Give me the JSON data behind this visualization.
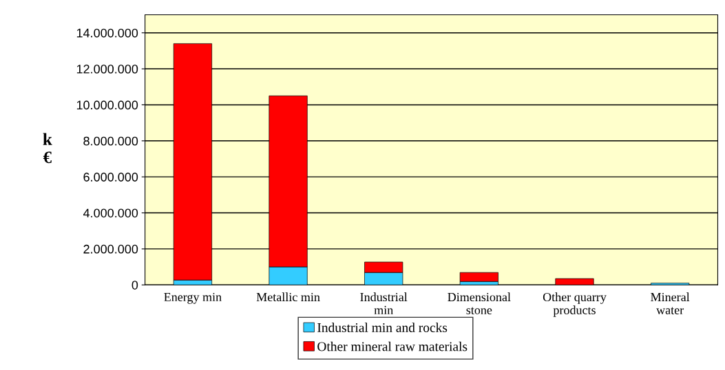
{
  "chart_data": {
    "type": "bar",
    "stacked": true,
    "ylabel": "k\n€",
    "categories": [
      "Energy min",
      "Metallic min",
      "Industrial\nmin",
      "Dimensional\nstone",
      "Other quarry\nproducts",
      "Mineral\nwater"
    ],
    "series": [
      {
        "name": "Industrial min and rocks",
        "color": "#33ccff",
        "values": [
          270000,
          1000000,
          690000,
          190000,
          null,
          100000
        ]
      },
      {
        "name": "Other mineral raw materials",
        "color": "#ff0000",
        "values": [
          13130000,
          9500000,
          580000,
          500000,
          350000,
          null
        ]
      }
    ],
    "ylim": [
      0,
      15000000
    ],
    "yticks": [
      {
        "value": 0,
        "label": "0"
      },
      {
        "value": 2000000,
        "label": "2.000.000"
      },
      {
        "value": 4000000,
        "label": "4.000.000"
      },
      {
        "value": 6000000,
        "label": "6.000.000"
      },
      {
        "value": 8000000,
        "label": "8.000.000"
      },
      {
        "value": 10000000,
        "label": "10.000.000"
      },
      {
        "value": 12000000,
        "label": "12.000.000"
      },
      {
        "value": 14000000,
        "label": "14.000.000"
      }
    ],
    "grid": "y",
    "legend": "bottom"
  }
}
